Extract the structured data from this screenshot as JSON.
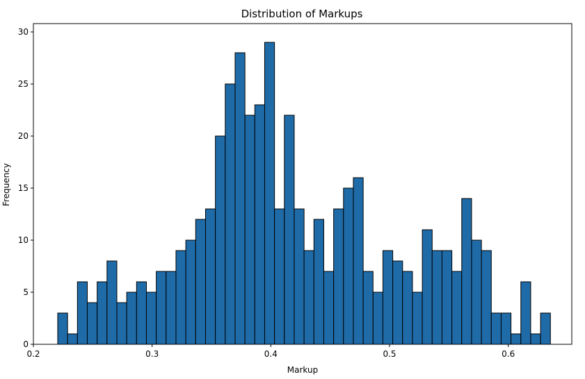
{
  "chart_data": {
    "type": "bar",
    "title": "Distribution of Markups",
    "xlabel": "Markup",
    "ylabel": "Frequency",
    "xlim": [
      0.2,
      0.6535
    ],
    "ylim": [
      0,
      30.8
    ],
    "bin_start": 0.2205,
    "bin_width": 0.0083,
    "values": [
      3,
      1,
      6,
      4,
      6,
      8,
      4,
      5,
      6,
      5,
      7,
      7,
      9,
      10,
      12,
      13,
      20,
      25,
      28,
      22,
      23,
      29,
      13,
      22,
      13,
      9,
      12,
      7,
      13,
      15,
      16,
      7,
      5,
      9,
      8,
      7,
      5,
      11,
      9,
      9,
      7,
      14,
      10,
      9,
      3,
      3,
      1,
      6,
      1,
      3
    ],
    "x_ticks": [
      0.2,
      0.3,
      0.4,
      0.5,
      0.6
    ],
    "x_tick_labels": [
      "0.2",
      "0.3",
      "0.4",
      "0.5",
      "0.6"
    ],
    "y_ticks": [
      0,
      5,
      10,
      15,
      20,
      25,
      30
    ],
    "y_tick_labels": [
      "0",
      "5",
      "10",
      "15",
      "20",
      "25",
      "30"
    ],
    "bar_color": "#1f6ba8",
    "edge_color": "#000000",
    "grid": false,
    "legend": "none"
  }
}
